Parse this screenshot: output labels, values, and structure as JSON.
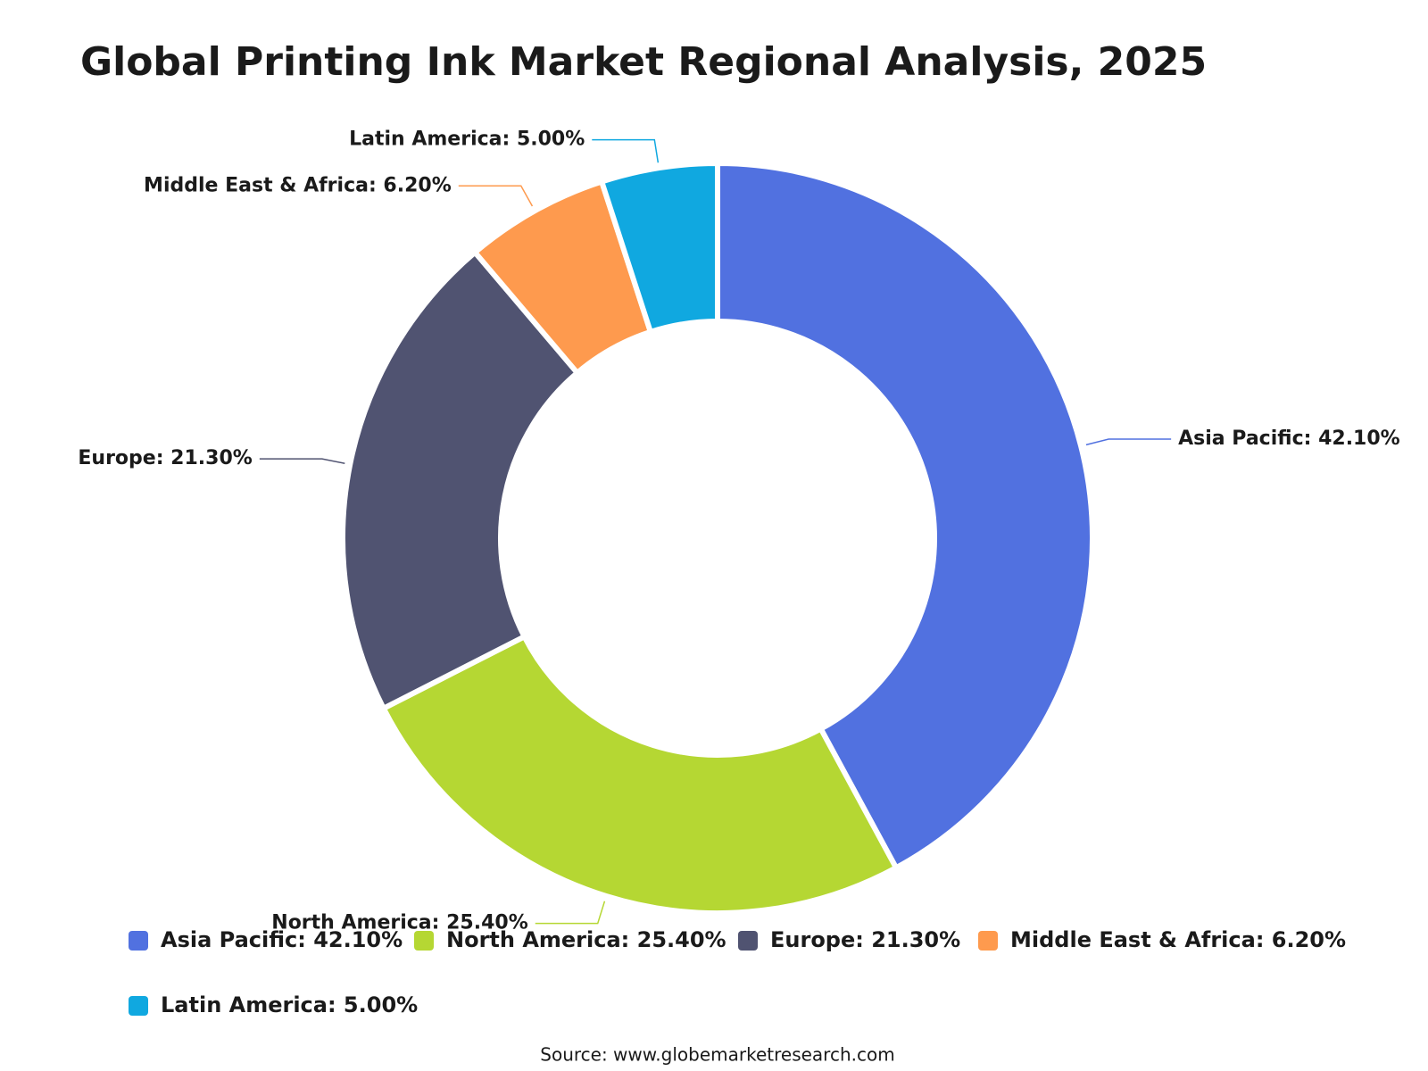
{
  "chart_data": {
    "type": "donut",
    "title": "Global Printing Ink Market Regional Analysis, 2025",
    "values": [
      42.1,
      25.4,
      21.3,
      6.2,
      5.0
    ],
    "value_labels": [
      "Asia Pacific: 42.10%",
      "North America: 25.40%",
      "Europe: 21.30%",
      "Middle East & Africa: 6.20%",
      "Latin America: 5.00%"
    ],
    "colors": [
      "#5171e0",
      "#b5d733",
      "#505371",
      "#fe9a4e",
      "#10a8e0"
    ],
    "legend": true,
    "source": "Source: www.globemarketresearch.com"
  }
}
